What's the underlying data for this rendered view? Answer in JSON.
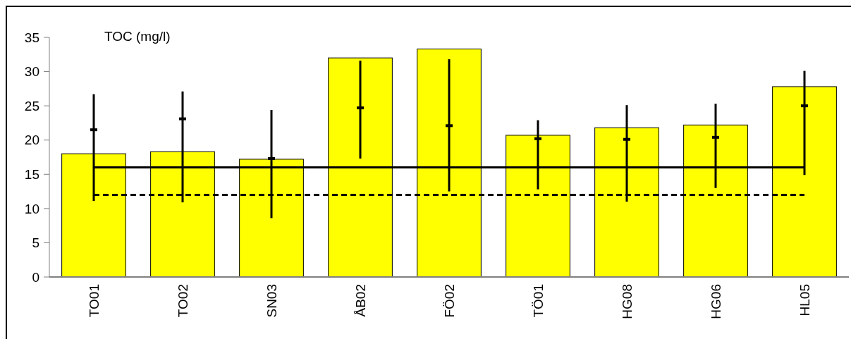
{
  "chart_data": {
    "type": "bar",
    "title": "TOC (mg/l)",
    "categories": [
      "TO01",
      "TO02",
      "SN03",
      "ÅB02",
      "FÖ02",
      "TÖ01",
      "HG08",
      "HG06",
      "HL05"
    ],
    "series": [
      {
        "color": "#ffff00",
        "values": [
          18.0,
          18.3,
          17.2,
          32.0,
          33.3,
          20.7,
          21.8,
          22.2,
          27.8
        ]
      },
      {
        "type": "scatter",
        "color": "#000000",
        "marker": "square",
        "values": [
          21.5,
          23.1,
          17.3,
          24.7,
          22.1,
          20.2,
          20.1,
          20.4,
          25.0
        ],
        "errors": [
          [
            11.1,
            26.7
          ],
          [
            10.9,
            27.1
          ],
          [
            8.6,
            24.4
          ],
          [
            17.3,
            31.6
          ],
          [
            12.5,
            31.8
          ],
          [
            12.8,
            22.9
          ],
          [
            11.0,
            25.1
          ],
          [
            13.0,
            25.3
          ],
          [
            14.9,
            30.1
          ]
        ]
      }
    ],
    "ylim": [
      0,
      35
    ],
    "yticks": [
      0,
      5,
      10,
      15,
      20,
      25,
      30,
      35
    ],
    "ref_lines": [
      {
        "axis": "y",
        "value": 16,
        "color": "#000000",
        "line_style": "solid"
      },
      {
        "axis": "y",
        "value": 12,
        "color": "#000000",
        "line_style": "dashed"
      }
    ],
    "grid": false
  }
}
